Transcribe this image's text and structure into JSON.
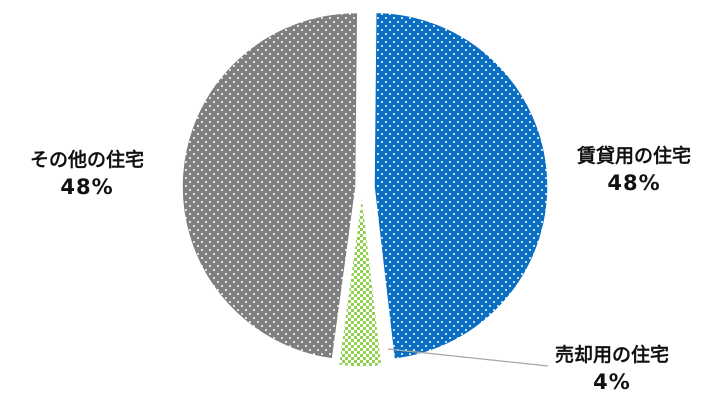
{
  "chart_data": {
    "type": "pie",
    "title": "",
    "categories": [
      "賃貸用の住宅",
      "売却用の住宅",
      "その他の住宅"
    ],
    "values": [
      48,
      4,
      48
    ],
    "labels": [
      "48%",
      "4%",
      "48%"
    ],
    "colors": [
      "#0a6fc2",
      "#92d050",
      "#7f7f7f"
    ],
    "patterns": [
      "white-dots",
      "checker",
      "white-dots"
    ],
    "exploded": true,
    "legend": "none"
  }
}
